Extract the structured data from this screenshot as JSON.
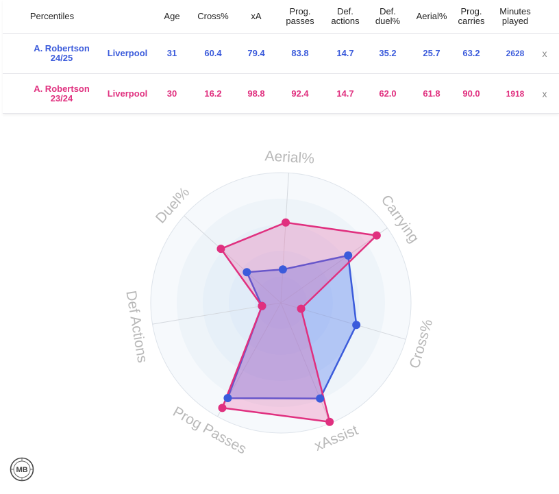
{
  "table": {
    "columns": [
      "Percentiles",
      "",
      "Age",
      "Cross%",
      "xA",
      "Prog.\npasses",
      "Def.\nactions",
      "Def.\nduel%",
      "Aerial%",
      "Prog.\ncarries",
      "Minutes\nplayed"
    ],
    "rows": [
      {
        "player": "A. Robertson\n24/25",
        "team": "Liverpool",
        "age": "31",
        "cross": "60.4",
        "xa": "79.4",
        "prog_passes": "83.8",
        "def_actions": "14.7",
        "def_duel": "35.2",
        "aerial": "25.7",
        "prog_carries": "63.2",
        "minutes": "2628",
        "remove": "x",
        "color": "#3b5bdb"
      },
      {
        "player": "A. Robertson\n23/24",
        "team": "Liverpool",
        "age": "30",
        "cross": "16.2",
        "xa": "98.8",
        "prog_passes": "92.4",
        "def_actions": "14.7",
        "def_duel": "62.0",
        "aerial": "61.8",
        "prog_carries": "90.0",
        "minutes": "1918",
        "remove": "x",
        "color": "#e0307f"
      }
    ]
  },
  "chart_data": {
    "type": "radar",
    "axes": [
      "Aerial%",
      "Carrying",
      "Cross%",
      "xAssist",
      "Prog Passes",
      "Def Actions",
      "Duel%"
    ],
    "range": [
      0,
      100
    ],
    "grid": "concentric rings",
    "series": [
      {
        "name": "A. Robertson 24/25",
        "color": "#3b5bdb",
        "values": [
          25.7,
          63.2,
          60.4,
          79.4,
          83.8,
          14.7,
          35.2
        ]
      },
      {
        "name": "A. Robertson 23/24",
        "color": "#e0307f",
        "values": [
          61.8,
          90.0,
          16.2,
          98.8,
          92.4,
          14.7,
          62.0
        ]
      }
    ]
  },
  "logo": {
    "text": "MB"
  }
}
